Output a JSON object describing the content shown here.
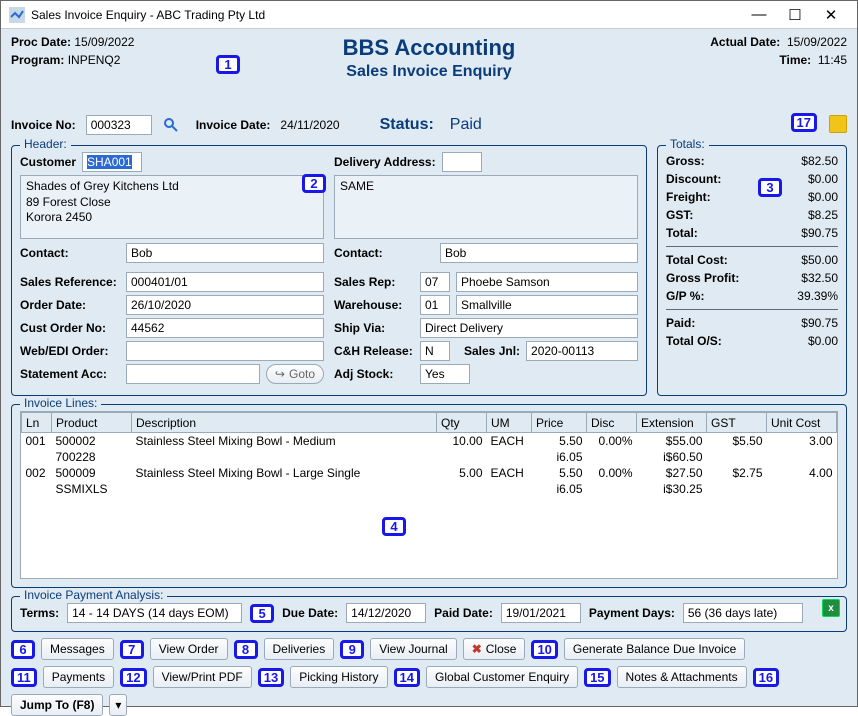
{
  "window": {
    "title": "Sales Invoice Enquiry - ABC Trading Pty Ltd"
  },
  "top": {
    "proc_date_label": "Proc Date:",
    "proc_date": "15/09/2022",
    "program_label": "Program:",
    "program": "INPENQ2",
    "actual_date_label": "Actual Date:",
    "actual_date": "15/09/2022",
    "time_label": "Time:",
    "time": "11:45",
    "brand_main": "BBS Accounting",
    "brand_sub": "Sales Invoice Enquiry"
  },
  "invoice": {
    "no_label": "Invoice No:",
    "no": "000323",
    "date_label": "Invoice Date:",
    "date": "24/11/2020",
    "status_label": "Status:",
    "status": "Paid"
  },
  "header": {
    "legend": "Header:",
    "customer_label": "Customer",
    "customer_code": "SHA001",
    "customer_addr": "Shades of Grey Kitchens Ltd\n89 Forest Close\nKorora 2450",
    "delivery_label": "Delivery Address:",
    "delivery_code": "",
    "delivery_addr": "SAME",
    "contact_label": "Contact:",
    "contact_left": "Bob",
    "contact_right": "Bob",
    "sales_ref_label": "Sales Reference:",
    "sales_ref": "000401/01",
    "sales_rep_label": "Sales Rep:",
    "sales_rep_code": "07",
    "sales_rep_name": "Phoebe Samson",
    "order_date_label": "Order Date:",
    "order_date": "26/10/2020",
    "warehouse_label": "Warehouse:",
    "warehouse_code": "01",
    "warehouse_name": "Smallville",
    "cust_order_label": "Cust Order No:",
    "cust_order": "44562",
    "ship_via_label": "Ship Via:",
    "ship_via": "Direct Delivery",
    "webedi_label": "Web/EDI Order:",
    "webedi": "",
    "ch_release_label": "C&H Release:",
    "ch_release": "N",
    "sales_jnl_label": "Sales Jnl:",
    "sales_jnl": "2020-00113",
    "stmt_label": "Statement Acc:",
    "stmt": "",
    "goto_label": "Goto",
    "adj_stock_label": "Adj Stock:",
    "adj_stock": "Yes"
  },
  "totals": {
    "legend": "Totals:",
    "gross_label": "Gross:",
    "gross": "$82.50",
    "discount_label": "Discount:",
    "discount": "$0.00",
    "freight_label": "Freight:",
    "freight": "$0.00",
    "gst_label": "GST:",
    "gst": "$8.25",
    "total_label": "Total:",
    "total": "$90.75",
    "total_cost_label": "Total Cost:",
    "total_cost": "$50.00",
    "gross_profit_label": "Gross Profit:",
    "gross_profit": "$32.50",
    "gp_pct_label": "G/P %:",
    "gp_pct": "39.39%",
    "paid_label": "Paid:",
    "paid": "$90.75",
    "total_os_label": "Total O/S:",
    "total_os": "$0.00"
  },
  "lines": {
    "legend": "Invoice Lines:",
    "cols": {
      "ln": "Ln",
      "product": "Product",
      "desc": "Description",
      "qty": "Qty",
      "um": "UM",
      "price": "Price",
      "disc": "Disc",
      "ext": "Extension",
      "gst": "GST",
      "unit_cost": "Unit Cost"
    },
    "rows": [
      {
        "ln": "001",
        "product": "500002",
        "product2": "700228",
        "desc": "Stainless Steel Mixing Bowl - Medium",
        "qty": "10.00",
        "um": "EACH",
        "price": "5.50",
        "price2": "i6.05",
        "disc": "0.00%",
        "ext": "$55.00",
        "ext2": "i$60.50",
        "gst": "$5.50",
        "unit_cost": "3.00"
      },
      {
        "ln": "002",
        "product": "500009",
        "product2": "SSMIXLS",
        "desc": "Stainless Steel Mixing Bowl - Large Single",
        "qty": "5.00",
        "um": "EACH",
        "price": "5.50",
        "price2": "i6.05",
        "disc": "0.00%",
        "ext": "$27.50",
        "ext2": "i$30.25",
        "gst": "$2.75",
        "unit_cost": "4.00"
      }
    ]
  },
  "analysis": {
    "legend": "Invoice Payment Analysis:",
    "terms_label": "Terms:",
    "terms": "14 - 14 DAYS (14 days EOM)",
    "due_label": "Due Date:",
    "due": "14/12/2020",
    "paid_label": "Paid Date:",
    "paid": "19/01/2021",
    "payment_days_label": "Payment Days:",
    "payment_days": "56 (36 days late)"
  },
  "buttons": {
    "messages": "Messages",
    "view_order": "View Order",
    "deliveries": "Deliveries",
    "view_journal": "View Journal",
    "close": "Close",
    "gen_balance": "Generate Balance Due Invoice",
    "payments": "Payments",
    "view_pdf": "View/Print PDF",
    "picking": "Picking History",
    "global_cust": "Global Customer Enquiry",
    "notes": "Notes & Attachments",
    "jump": "Jump To (F8)"
  },
  "annos": {
    "1": "1",
    "2": "2",
    "3": "3",
    "4": "4",
    "5": "5",
    "6": "6",
    "7": "7",
    "8": "8",
    "9": "9",
    "10": "10",
    "11": "11",
    "12": "12",
    "13": "13",
    "14": "14",
    "15": "15",
    "16": "16",
    "17": "17"
  }
}
